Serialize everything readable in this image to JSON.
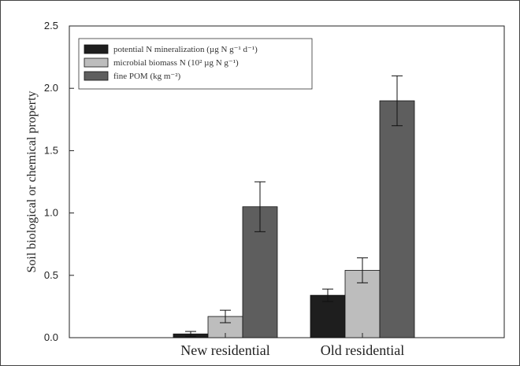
{
  "chart_data": {
    "type": "bar",
    "title": "",
    "xlabel": "",
    "ylabel": "Soil biological or chemical property",
    "ylim": [
      0,
      2.5
    ],
    "yticks": [
      0.0,
      0.5,
      1.0,
      1.5,
      2.0,
      2.5
    ],
    "ytick_labels": [
      "0.0",
      "0.5",
      "1.0",
      "1.5",
      "2.0",
      "2.5"
    ],
    "categories": [
      "New residential",
      "Old residential"
    ],
    "legend_position": "top-left",
    "grid": false,
    "series": [
      {
        "name": "potential N mineralization (µg N g⁻¹ d⁻¹)",
        "color": "#1e1e1e",
        "values": [
          0.03,
          0.34
        ],
        "errors": [
          0.02,
          0.05
        ]
      },
      {
        "name": "microbial biomass N (10² µg N g⁻¹)",
        "color": "#bdbdbd",
        "values": [
          0.17,
          0.54
        ],
        "errors": [
          0.05,
          0.1
        ]
      },
      {
        "name": "fine POM (kg m⁻²)",
        "color": "#5e5e5e",
        "values": [
          1.05,
          1.9
        ],
        "errors": [
          0.2,
          0.2
        ]
      }
    ]
  }
}
